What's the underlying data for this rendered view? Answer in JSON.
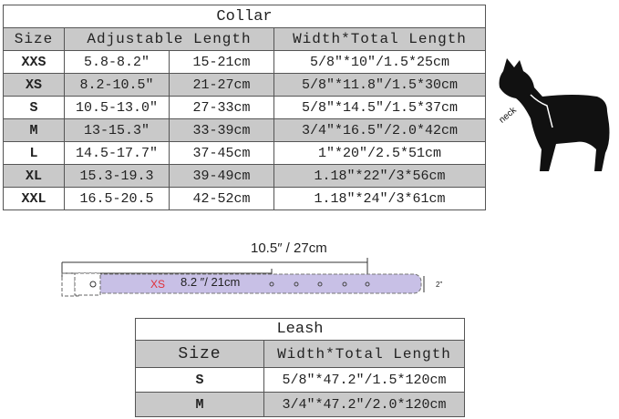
{
  "collar": {
    "title": "Collar",
    "headers": [
      "Size",
      "Adjustable Length",
      "Width*Total Length"
    ],
    "rows": [
      {
        "size": "XXS",
        "inch": "5.8-8.2″",
        "cm": "15-21cm",
        "width": "5/8″*10″/1.5*25cm"
      },
      {
        "size": "XS",
        "inch": "8.2-10.5″",
        "cm": "21-27cm",
        "width": "5/8″*11.8″/1.5*30cm"
      },
      {
        "size": "S",
        "inch": "10.5-13.0″",
        "cm": "27-33cm",
        "width": "5/8″*14.5″/1.5*37cm"
      },
      {
        "size": "M",
        "inch": "13-15.3″",
        "cm": "33-39cm",
        "width": "3/4″*16.5″/2.0*42cm"
      },
      {
        "size": "L",
        "inch": "14.5-17.7″",
        "cm": "37-45cm",
        "width": "1″*20″/2.5*51cm"
      },
      {
        "size": "XL",
        "inch": "15.3-19.3",
        "cm": "39-49cm",
        "width": "1.18″*22″/3*56cm"
      },
      {
        "size": "XXL",
        "inch": "16.5-20.5",
        "cm": "42-52cm",
        "width": "1.18″*24″/3*61cm"
      }
    ]
  },
  "dog": {
    "label": "neck"
  },
  "belt": {
    "total": "10.5″ / 27cm",
    "size": "XS",
    "min": "8.2 ″/ 21cm",
    "width": "2\"",
    "color": "#c8c0e6"
  },
  "leash": {
    "title": "Leash",
    "headers": [
      "Size",
      "Width*Total Length"
    ],
    "rows": [
      {
        "size": "S",
        "width": "5/8″*47.2″/1.5*120cm"
      },
      {
        "size": "M",
        "width": "3/4″*47.2″/2.0*120cm"
      }
    ]
  }
}
